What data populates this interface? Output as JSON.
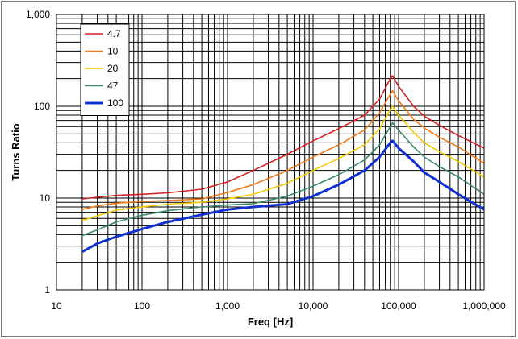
{
  "chart_data": {
    "type": "line",
    "title": "",
    "xlabel": "Freq [Hz]",
    "ylabel": "Turns Ratio",
    "xscale": "log",
    "yscale": "log",
    "xlim": [
      10,
      1000000
    ],
    "ylim": [
      1,
      1000
    ],
    "grid": true,
    "legend_position": "top-left",
    "x_tick_labels": [
      "10",
      "100",
      "1,000",
      "10,000",
      "100,000",
      "1,000,000"
    ],
    "y_tick_labels": [
      "1",
      "10",
      "100",
      "1,000"
    ],
    "series": [
      {
        "name": "4.7",
        "color": "#d42020",
        "points": [
          [
            20,
            9.8
          ],
          [
            30,
            10.2
          ],
          [
            50,
            10.7
          ],
          [
            100,
            11.0
          ],
          [
            200,
            11.4
          ],
          [
            500,
            12.5
          ],
          [
            1000,
            15
          ],
          [
            2000,
            20
          ],
          [
            5000,
            30
          ],
          [
            10000,
            42
          ],
          [
            20000,
            57
          ],
          [
            40000,
            80
          ],
          [
            60000,
            120
          ],
          [
            80000,
            200
          ],
          [
            85000,
            215
          ],
          [
            100000,
            165
          ],
          [
            150000,
            100
          ],
          [
            200000,
            78
          ],
          [
            300000,
            62
          ],
          [
            500000,
            48
          ],
          [
            1000000,
            35
          ]
        ]
      },
      {
        "name": "10",
        "color": "#f07a1a",
        "points": [
          [
            20,
            7.5
          ],
          [
            30,
            8.2
          ],
          [
            50,
            8.8
          ],
          [
            100,
            9.2
          ],
          [
            200,
            9.4
          ],
          [
            500,
            9.8
          ],
          [
            1000,
            11.5
          ],
          [
            2000,
            14
          ],
          [
            5000,
            20
          ],
          [
            10000,
            28
          ],
          [
            20000,
            38
          ],
          [
            40000,
            55
          ],
          [
            60000,
            85
          ],
          [
            80000,
            135
          ],
          [
            85000,
            148
          ],
          [
            100000,
            115
          ],
          [
            150000,
            72
          ],
          [
            200000,
            58
          ],
          [
            300000,
            46
          ],
          [
            500000,
            36
          ],
          [
            1000000,
            24
          ]
        ]
      },
      {
        "name": "20",
        "color": "#f5c800",
        "points": [
          [
            20,
            5.7
          ],
          [
            30,
            6.4
          ],
          [
            50,
            7.4
          ],
          [
            100,
            8.0
          ],
          [
            200,
            8.6
          ],
          [
            500,
            9.0
          ],
          [
            1000,
            9.8
          ],
          [
            2000,
            11
          ],
          [
            5000,
            14.5
          ],
          [
            10000,
            20
          ],
          [
            20000,
            27
          ],
          [
            40000,
            38
          ],
          [
            60000,
            57
          ],
          [
            80000,
            92
          ],
          [
            85000,
            100
          ],
          [
            100000,
            80
          ],
          [
            150000,
            52
          ],
          [
            200000,
            40
          ],
          [
            300000,
            32
          ],
          [
            500000,
            25
          ],
          [
            1000000,
            17
          ]
        ]
      },
      {
        "name": "47",
        "color": "#3a8a6a",
        "points": [
          [
            20,
            3.9
          ],
          [
            30,
            4.5
          ],
          [
            50,
            5.5
          ],
          [
            100,
            6.5
          ],
          [
            200,
            7.3
          ],
          [
            500,
            8.0
          ],
          [
            1000,
            8.4
          ],
          [
            2000,
            8.7
          ],
          [
            5000,
            10.5
          ],
          [
            10000,
            13.5
          ],
          [
            20000,
            18
          ],
          [
            40000,
            26
          ],
          [
            60000,
            38
          ],
          [
            80000,
            60
          ],
          [
            85000,
            66
          ],
          [
            100000,
            55
          ],
          [
            150000,
            36
          ],
          [
            200000,
            28
          ],
          [
            300000,
            22
          ],
          [
            500000,
            17
          ],
          [
            1000000,
            11
          ]
        ]
      },
      {
        "name": "100",
        "color": "#1030d0",
        "points": [
          [
            20,
            2.6
          ],
          [
            30,
            3.2
          ],
          [
            50,
            3.8
          ],
          [
            100,
            4.6
          ],
          [
            200,
            5.5
          ],
          [
            500,
            6.6
          ],
          [
            1000,
            7.5
          ],
          [
            2000,
            8.0
          ],
          [
            5000,
            8.6
          ],
          [
            10000,
            10.5
          ],
          [
            20000,
            14
          ],
          [
            40000,
            20
          ],
          [
            60000,
            28
          ],
          [
            80000,
            40
          ],
          [
            85000,
            42
          ],
          [
            100000,
            35
          ],
          [
            150000,
            25
          ],
          [
            200000,
            19
          ],
          [
            300000,
            15
          ],
          [
            500000,
            11
          ],
          [
            1000000,
            7.5
          ]
        ]
      }
    ]
  }
}
